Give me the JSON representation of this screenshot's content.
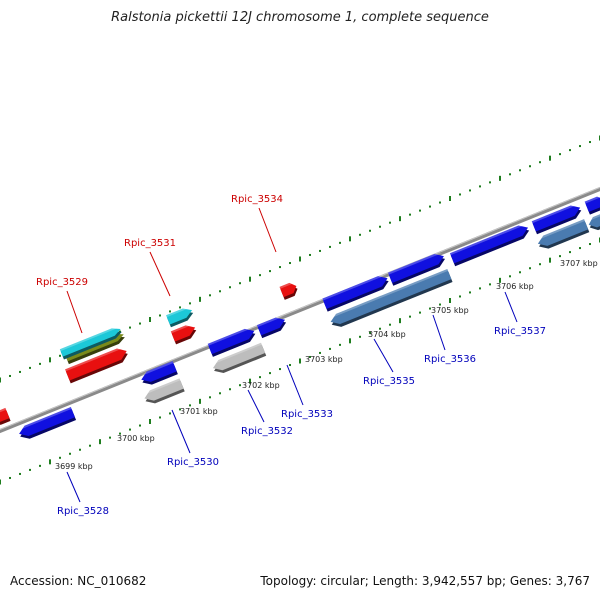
{
  "title": "Ralstonia pickettii 12J chromosome 1, complete sequence",
  "footer": {
    "accession": "Accession: NC_010682",
    "summary": "Topology: circular; Length: 3,942,557 bp; Genes: 3,767"
  },
  "colors": {
    "background": "#ffffff",
    "backbone": "#808080",
    "tick": "#1e7d1e",
    "gene_blue": "#1010e0",
    "gene_steel": "#4a7bb0",
    "gene_gray": "#bdbdbd",
    "gene_red": "#e81010",
    "gene_cyan": "#1cc8d8",
    "gene_olive": "#7a8a1a",
    "label_forward": "#cc0000",
    "label_reverse": "#0000bb"
  },
  "kbp_labels": [
    "3699 kbp",
    "3700 kbp",
    "3701 kbp",
    "3702 kbp",
    "3703 kbp",
    "3704 kbp",
    "3705 kbp",
    "3706 kbp",
    "3707 kbp"
  ],
  "gene_labels_forward": [
    "Rpic_3529",
    "Rpic_3531",
    "Rpic_3534"
  ],
  "gene_labels_reverse": [
    "Rpic_3528",
    "Rpic_3530",
    "Rpic_3532",
    "Rpic_3533",
    "Rpic_3535",
    "Rpic_3536",
    "Rpic_3537"
  ]
}
